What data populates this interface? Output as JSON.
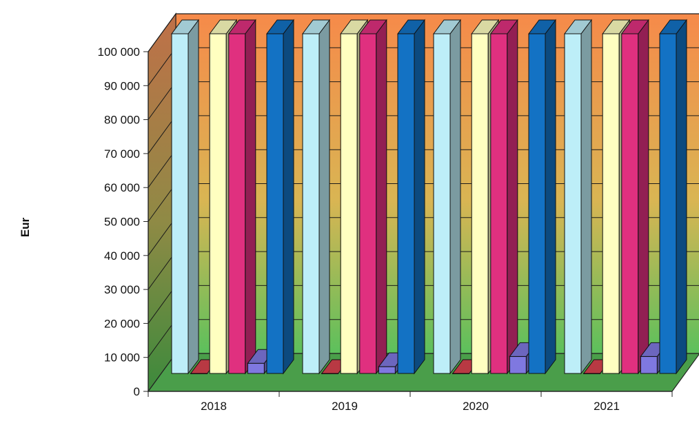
{
  "chart_data": {
    "type": "bar",
    "style": "3d-clustered-column",
    "title": "",
    "xlabel": "",
    "ylabel": "Eur",
    "ylim": [
      0,
      100000
    ],
    "yticks": [
      "0",
      "10 000",
      "20 000",
      "30 000",
      "40 000",
      "50 000",
      "60 000",
      "70 000",
      "80 000",
      "90 000",
      "100 000"
    ],
    "categories": [
      "2018",
      "2019",
      "2020",
      "2021"
    ],
    "grid": true,
    "legend": "none",
    "series": [
      {
        "color": "#bdeef8",
        "values": [
          100000,
          100000,
          100000,
          100000
        ]
      },
      {
        "color": "#d9434f",
        "values": [
          0,
          0,
          0,
          0
        ]
      },
      {
        "color": "#ffffc0",
        "values": [
          100000,
          100000,
          100000,
          100000
        ]
      },
      {
        "color": "#e0307f",
        "values": [
          100000,
          100000,
          100000,
          100000
        ]
      },
      {
        "color": "#7f78e0",
        "values": [
          3000,
          2000,
          5000,
          5000
        ]
      },
      {
        "color": "#1372c4",
        "values": [
          100000,
          100000,
          100000,
          100000
        ]
      }
    ],
    "colors": {
      "wall_top": "#f68a4a",
      "wall_mid": "#d9b553",
      "wall_bottom": "#5cc05c",
      "floor": "#4a9e4a",
      "side_wall": "#7a5a40"
    }
  }
}
